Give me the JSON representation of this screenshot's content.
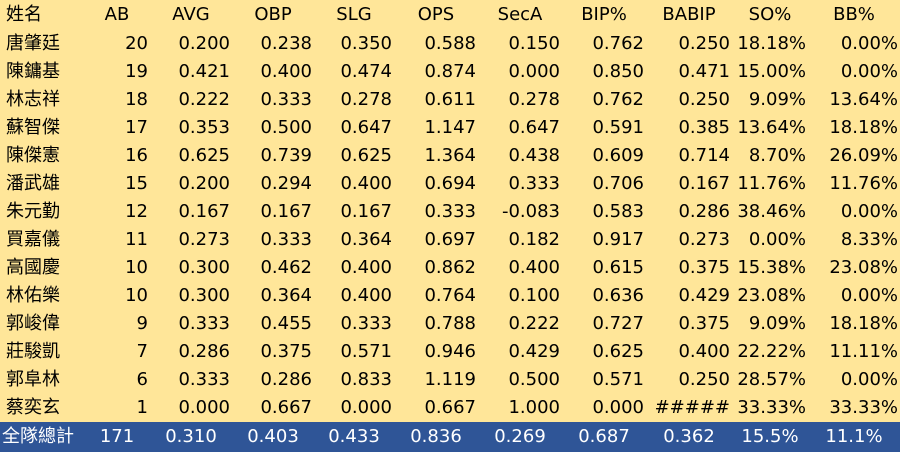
{
  "headers": [
    "姓名",
    "AB",
    "AVG",
    "OBP",
    "SLG",
    "OPS",
    "SecA",
    "BIP%",
    "BABIP",
    "SO%",
    "BB%"
  ],
  "rows": [
    [
      "唐肇廷",
      "20",
      "0.200",
      "0.238",
      "0.350",
      "0.588",
      "0.150",
      "0.762",
      "0.250",
      "18.18%",
      "0.00%"
    ],
    [
      "陳鏞基",
      "19",
      "0.421",
      "0.400",
      "0.474",
      "0.874",
      "0.000",
      "0.850",
      "0.471",
      "15.00%",
      "0.00%"
    ],
    [
      "林志祥",
      "18",
      "0.222",
      "0.333",
      "0.278",
      "0.611",
      "0.278",
      "0.762",
      "0.250",
      "9.09%",
      "13.64%"
    ],
    [
      "蘇智傑",
      "17",
      "0.353",
      "0.500",
      "0.647",
      "1.147",
      "0.647",
      "0.591",
      "0.385",
      "13.64%",
      "18.18%"
    ],
    [
      "陳傑憲",
      "16",
      "0.625",
      "0.739",
      "0.625",
      "1.364",
      "0.438",
      "0.609",
      "0.714",
      "8.70%",
      "26.09%"
    ],
    [
      "潘武雄",
      "15",
      "0.200",
      "0.294",
      "0.400",
      "0.694",
      "0.333",
      "0.706",
      "0.167",
      "11.76%",
      "11.76%"
    ],
    [
      "朱元勤",
      "12",
      "0.167",
      "0.167",
      "0.167",
      "0.333",
      "-0.083",
      "0.583",
      "0.286",
      "38.46%",
      "0.00%"
    ],
    [
      "買嘉儀",
      "11",
      "0.273",
      "0.333",
      "0.364",
      "0.697",
      "0.182",
      "0.917",
      "0.273",
      "0.00%",
      "8.33%"
    ],
    [
      "高國慶",
      "10",
      "0.300",
      "0.462",
      "0.400",
      "0.862",
      "0.400",
      "0.615",
      "0.375",
      "15.38%",
      "23.08%"
    ],
    [
      "林佑樂",
      "10",
      "0.300",
      "0.364",
      "0.400",
      "0.764",
      "0.100",
      "0.636",
      "0.429",
      "23.08%",
      "0.00%"
    ],
    [
      "郭峻偉",
      "9",
      "0.333",
      "0.455",
      "0.333",
      "0.788",
      "0.222",
      "0.727",
      "0.375",
      "9.09%",
      "18.18%"
    ],
    [
      "莊駿凱",
      "7",
      "0.286",
      "0.375",
      "0.571",
      "0.946",
      "0.429",
      "0.625",
      "0.400",
      "22.22%",
      "11.11%"
    ],
    [
      "郭阜林",
      "6",
      "0.333",
      "0.286",
      "0.833",
      "1.119",
      "0.500",
      "0.571",
      "0.250",
      "28.57%",
      "0.00%"
    ],
    [
      "蔡奕玄",
      "1",
      "0.000",
      "0.667",
      "0.000",
      "0.667",
      "1.000",
      "0.000",
      "#####",
      "33.33%",
      "33.33%"
    ]
  ],
  "total": [
    "全隊總計",
    "171",
    "0.310",
    "0.403",
    "0.433",
    "0.836",
    "0.269",
    "0.687",
    "0.362",
    "15.5%",
    "11.1%"
  ],
  "colors": {
    "body_bg": "#ffe699",
    "total_bg": "#2f5597",
    "total_text": "#ffffff"
  }
}
